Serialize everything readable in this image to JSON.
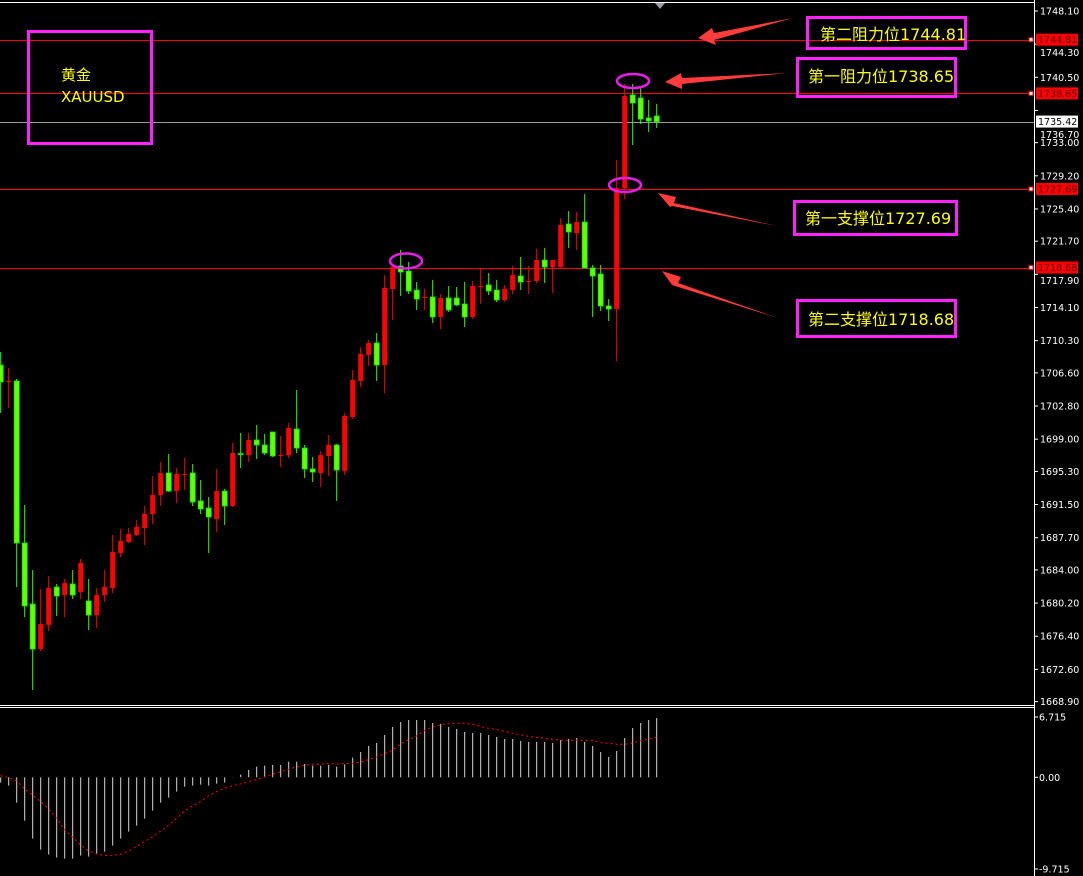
{
  "symbol": {
    "name_cn": "黄金",
    "ticker": "XAUUSD"
  },
  "colors": {
    "bull": "#ff0000",
    "bear": "#33ff00",
    "level_line": "#ff0000",
    "annotation_box": "#ff22ff",
    "annotation_text": "#ffff00",
    "arrow": "#ff3b3b",
    "macd_hist": "#d8d8d8",
    "signal": "#ff0000"
  },
  "annotations": [
    {
      "label": "第二阻力位1744.81",
      "price": 1744.81
    },
    {
      "label": "第一阻力位1738.65",
      "price": 1738.65
    },
    {
      "label": "第一支撑位1727.69",
      "price": 1727.69
    },
    {
      "label": "第二支撑位1718.68",
      "price": 1718.68
    }
  ],
  "level_tags": [
    "1744.81",
    "1738.65",
    "1727.69",
    "1718.68"
  ],
  "current_price": "1735.42",
  "chart_data": [
    {
      "type": "candlestick",
      "title": "",
      "ylim": [
        1668.5,
        1749.36
      ],
      "y_ticks": [
        "1748.10",
        "1744.30",
        "1740.50",
        "1736.70",
        "1733.00",
        "1729.20",
        "1725.40",
        "1721.70",
        "1717.90",
        "1714.10",
        "1710.30",
        "1706.60",
        "1702.80",
        "1699.00",
        "1695.30",
        "1691.50",
        "1687.70",
        "1684.00",
        "1680.20",
        "1676.40",
        "1672.60",
        "1668.90"
      ],
      "ohlc_fields": [
        "open",
        "high",
        "low",
        "close"
      ],
      "candles": [
        [
          1707.5,
          1708.99,
          1702.0,
          1705.55
        ],
        [
          1705.6,
          1707.16,
          1702.57,
          1705.67
        ],
        [
          1705.67,
          1705.9,
          1682.04,
          1687.09
        ],
        [
          1687.09,
          1691.45,
          1678.6,
          1679.87
        ],
        [
          1680.09,
          1683.99,
          1670.23,
          1674.93
        ],
        [
          1674.93,
          1681.81,
          1674.7,
          1677.8
        ],
        [
          1677.69,
          1683.31,
          1677.0,
          1681.93
        ],
        [
          1682.04,
          1682.39,
          1678.72,
          1681.01
        ],
        [
          1681.13,
          1682.96,
          1678.6,
          1682.5
        ],
        [
          1682.39,
          1683.99,
          1680.67,
          1681.13
        ],
        [
          1681.47,
          1685.26,
          1680.67,
          1684.8
        ],
        [
          1680.44,
          1682.96,
          1677.11,
          1678.83
        ],
        [
          1678.83,
          1681.93,
          1677.34,
          1681.13
        ],
        [
          1681.13,
          1683.99,
          1680.32,
          1682.04
        ],
        [
          1681.93,
          1688.01,
          1681.36,
          1686.06
        ],
        [
          1685.94,
          1688.7,
          1685.48,
          1687.32
        ],
        [
          1687.2,
          1688.81,
          1687.09,
          1688.12
        ],
        [
          1688.01,
          1689.73,
          1687.89,
          1688.93
        ],
        [
          1688.81,
          1691.33,
          1686.86,
          1690.42
        ],
        [
          1690.42,
          1694.77,
          1689.27,
          1692.59
        ],
        [
          1692.59,
          1696.38,
          1691.33,
          1695.12
        ],
        [
          1695.12,
          1697.3,
          1692.94,
          1693.05
        ],
        [
          1693.05,
          1695.69,
          1691.68,
          1695.0
        ],
        [
          1694.94,
          1696.84,
          1693.17,
          1695.0
        ],
        [
          1695.12,
          1696.15,
          1691.33,
          1691.79
        ],
        [
          1691.91,
          1694.32,
          1690.42,
          1690.99
        ],
        [
          1691.1,
          1692.37,
          1685.94,
          1690.07
        ],
        [
          1689.84,
          1695.58,
          1688.35,
          1693.05
        ],
        [
          1693.05,
          1693.28,
          1689.15,
          1691.33
        ],
        [
          1691.33,
          1698.56,
          1691.22,
          1697.41
        ],
        [
          1697.35,
          1699.71,
          1695.69,
          1697.3
        ],
        [
          1697.18,
          1699.71,
          1696.38,
          1698.9
        ],
        [
          1698.9,
          1700.62,
          1696.72,
          1698.33
        ],
        [
          1698.33,
          1699.59,
          1697.18,
          1697.41
        ],
        [
          1699.82,
          1699.82,
          1696.95,
          1697.07
        ],
        [
          1697.12,
          1699.36,
          1695.81,
          1697.18
        ],
        [
          1697.18,
          1700.85,
          1696.84,
          1700.28
        ],
        [
          1700.16,
          1704.64,
          1697.41,
          1697.98
        ],
        [
          1697.98,
          1698.33,
          1694.54,
          1695.58
        ],
        [
          1695.58,
          1696.95,
          1694.09,
          1695.23
        ],
        [
          1695.12,
          1697.64,
          1693.51,
          1697.18
        ],
        [
          1697.07,
          1699.48,
          1694.77,
          1698.33
        ],
        [
          1698.33,
          1698.44,
          1691.91,
          1695.46
        ],
        [
          1695.35,
          1702.0,
          1694.89,
          1701.65
        ],
        [
          1701.54,
          1706.93,
          1701.31,
          1705.78
        ],
        [
          1705.67,
          1709.57,
          1704.98,
          1708.76
        ],
        [
          1708.65,
          1710.37,
          1707.39,
          1710.03
        ],
        [
          1710.03,
          1711.17,
          1705.67,
          1707.5
        ],
        [
          1707.5,
          1717.82,
          1704.29,
          1716.33
        ],
        [
          1716.22,
          1718.86,
          1712.66,
          1718.74
        ],
        [
          1718.86,
          1720.69,
          1715.42,
          1718.17
        ],
        [
          1718.28,
          1719.32,
          1715.65,
          1715.99
        ],
        [
          1716.1,
          1717.02,
          1713.81,
          1715.07
        ],
        [
          1715.24,
          1716.22,
          1713.81,
          1715.3
        ],
        [
          1715.3,
          1717.25,
          1712.32,
          1713.01
        ],
        [
          1713.01,
          1715.65,
          1711.63,
          1715.19
        ],
        [
          1715.19,
          1716.56,
          1713.58,
          1713.81
        ],
        [
          1715.19,
          1716.45,
          1714.27,
          1714.39
        ],
        [
          1714.5,
          1717.02,
          1711.86,
          1713.01
        ],
        [
          1713.01,
          1717.14,
          1712.78,
          1716.56
        ],
        [
          1716.5,
          1718.51,
          1714.5,
          1716.56
        ],
        [
          1716.68,
          1718.05,
          1715.53,
          1715.99
        ],
        [
          1716.1,
          1717.25,
          1714.73,
          1714.96
        ],
        [
          1714.96,
          1716.68,
          1714.73,
          1716.22
        ],
        [
          1716.1,
          1718.86,
          1715.65,
          1717.82
        ],
        [
          1717.71,
          1719.89,
          1716.1,
          1717.02
        ],
        [
          1717.08,
          1718.86,
          1715.65,
          1717.14
        ],
        [
          1717.14,
          1720.81,
          1716.91,
          1719.54
        ],
        [
          1719.54,
          1720.92,
          1716.91,
          1718.74
        ],
        [
          1718.74,
          1719.54,
          1715.76,
          1719.54
        ],
        [
          1718.74,
          1724.36,
          1718.63,
          1723.56
        ],
        [
          1723.67,
          1725.16,
          1720.92,
          1722.76
        ],
        [
          1722.64,
          1725.05,
          1720.69,
          1723.9
        ],
        [
          1723.9,
          1727.11,
          1718.63,
          1718.63
        ],
        [
          1718.63,
          1718.97,
          1713.01,
          1717.71
        ],
        [
          1717.94,
          1718.97,
          1713.7,
          1714.27
        ],
        [
          1714.27,
          1715.07,
          1712.55,
          1713.93
        ],
        [
          1713.93,
          1731.01,
          1707.96,
          1727.8
        ],
        [
          1727.8,
          1739.73,
          1726.54,
          1738.35
        ],
        [
          1738.47,
          1739.73,
          1732.73,
          1737.55
        ],
        [
          1738.12,
          1739.27,
          1735.14,
          1735.71
        ],
        [
          1735.83,
          1737.89,
          1734.22,
          1735.49
        ],
        [
          1736.06,
          1737.43,
          1734.68,
          1735.42
        ]
      ]
    },
    {
      "type": "bar+line",
      "title": "",
      "ylim": [
        -9.715,
        6.715
      ],
      "y_ticks": [
        "6.715",
        "0.00",
        "-9.715"
      ],
      "histogram": [
        -0.6,
        -0.94,
        -2.87,
        -4.91,
        -6.94,
        -8.19,
        -8.75,
        -9.09,
        -9.21,
        -9.21,
        -8.87,
        -8.98,
        -8.68,
        -8.42,
        -7.74,
        -6.94,
        -6.15,
        -5.47,
        -4.68,
        -3.77,
        -2.87,
        -2.3,
        -1.62,
        -1.06,
        -0.94,
        -0.83,
        -0.94,
        -0.72,
        -0.6,
        0.02,
        0.3,
        0.83,
        1.21,
        1.32,
        1.4,
        1.4,
        1.77,
        1.77,
        1.51,
        1.32,
        1.32,
        1.4,
        1.21,
        1.47,
        2.23,
        2.87,
        3.55,
        3.89,
        4.79,
        5.7,
        6.26,
        6.49,
        6.49,
        6.49,
        6.15,
        6.04,
        5.7,
        5.47,
        5.13,
        5.02,
        5.02,
        4.79,
        4.57,
        4.34,
        4.34,
        4.11,
        4.0,
        4.0,
        4.0,
        3.89,
        4.23,
        4.34,
        4.45,
        4.0,
        3.55,
        2.87,
        2.3,
        2.98,
        4.45,
        5.58,
        6.15,
        6.49,
        6.715
      ],
      "signal": [
        0.19,
        -0.04,
        -0.42,
        -1.32,
        -2.0,
        -2.75,
        -3.58,
        -4.64,
        -5.96,
        -6.79,
        -7.66,
        -8.34,
        -8.68,
        -8.87,
        -8.83,
        -8.72,
        -8.34,
        -7.81,
        -7.28,
        -6.72,
        -6.08,
        -5.4,
        -4.64,
        -3.81,
        -3.21,
        -2.75,
        -2.08,
        -1.62,
        -1.25,
        -0.94,
        -0.75,
        -0.49,
        -0.26,
        0.04,
        0.34,
        0.64,
        0.91,
        1.21,
        1.36,
        1.47,
        1.47,
        1.58,
        1.51,
        1.55,
        1.58,
        1.7,
        2.0,
        2.3,
        2.68,
        3.09,
        3.77,
        4.26,
        4.68,
        5.32,
        5.7,
        5.96,
        6.08,
        6.11,
        6.11,
        6.0,
        5.77,
        5.55,
        5.4,
        5.21,
        4.98,
        4.83,
        4.64,
        4.53,
        4.42,
        4.3,
        4.19,
        4.19,
        4.19,
        4.19,
        4.19,
        3.92,
        3.85,
        3.74,
        3.74,
        3.89,
        4.15,
        4.3,
        4.57
      ]
    }
  ]
}
